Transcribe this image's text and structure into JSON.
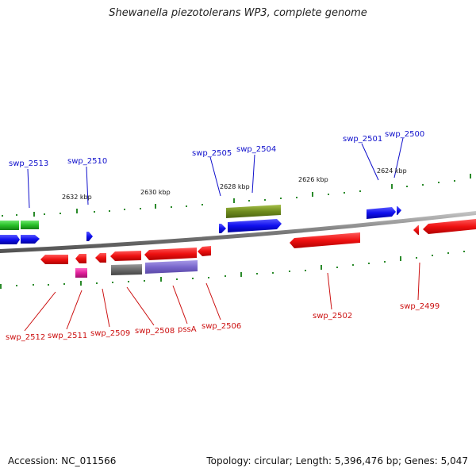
{
  "title": "Shewanella piezotolerans WP3, complete genome",
  "footer": {
    "accession": "Accession: NC_011566",
    "summary": "Topology: circular; Length: 5,396,476 bp; Genes: 5,047"
  },
  "colors": {
    "plus_label": "#1010cc",
    "minus_label": "#cc1010",
    "backbone": "#808080",
    "tick": "#228822"
  },
  "scale_labels": [
    "2632 kbp",
    "2630 kbp",
    "2628 kbp",
    "2626 kbp",
    "2624 kbp"
  ],
  "plus_labels": [
    "swp_2513",
    "swp_2510",
    "swp_2505",
    "swp_2504",
    "swp_2501",
    "swp_2500"
  ],
  "minus_labels": [
    "swp_2512",
    "swp_2511",
    "swp_2509",
    "swp_2508",
    "pssA",
    "swp_2506",
    "swp_2502",
    "swp_2499"
  ]
}
